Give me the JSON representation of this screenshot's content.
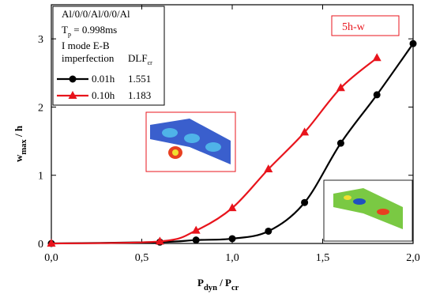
{
  "chart_data": {
    "type": "line",
    "x_label": [
      "P",
      "dyn",
      " / P",
      "cr"
    ],
    "y_label": [
      "w",
      "max",
      " / h"
    ],
    "xlim": [
      0,
      2
    ],
    "ylim": [
      0,
      3.5
    ],
    "xticks": [
      {
        "value": 0,
        "label": "0,0"
      },
      {
        "value": 0.5,
        "label": "0,5"
      },
      {
        "value": 1,
        "label": "1,0"
      },
      {
        "value": 1.5,
        "label": "1,5"
      },
      {
        "value": 2,
        "label": "2,0"
      }
    ],
    "yticks": [
      0,
      1,
      2,
      3
    ],
    "legend_header": {
      "model": "Al/0/0/Al/0/0/Al",
      "period": [
        "T",
        "p",
        " = 0.998ms"
      ],
      "mode": "I mode E-B",
      "imperfection_heading": "imperfection",
      "dlf_heading": [
        "DLF",
        "cr"
      ]
    },
    "annotation": "5h-w",
    "series": [
      {
        "name": "0.01h",
        "color": "#000000",
        "marker": "circle",
        "dlf": 1.551,
        "x": [
          0,
          0.6,
          0.8,
          1.0,
          1.2,
          1.4,
          1.6,
          1.8,
          2.0
        ],
        "values": [
          0,
          0.02,
          0.05,
          0.07,
          0.18,
          0.6,
          1.47,
          2.18,
          2.93
        ]
      },
      {
        "name": "0.10h",
        "color": "#e8141c",
        "marker": "triangle",
        "dlf": 1.183,
        "x": [
          0,
          0.6,
          0.8,
          1.0,
          1.2,
          1.4,
          1.6,
          1.8
        ],
        "values": [
          0,
          0.03,
          0.19,
          0.52,
          1.09,
          1.63,
          2.28,
          2.72
        ]
      }
    ]
  }
}
